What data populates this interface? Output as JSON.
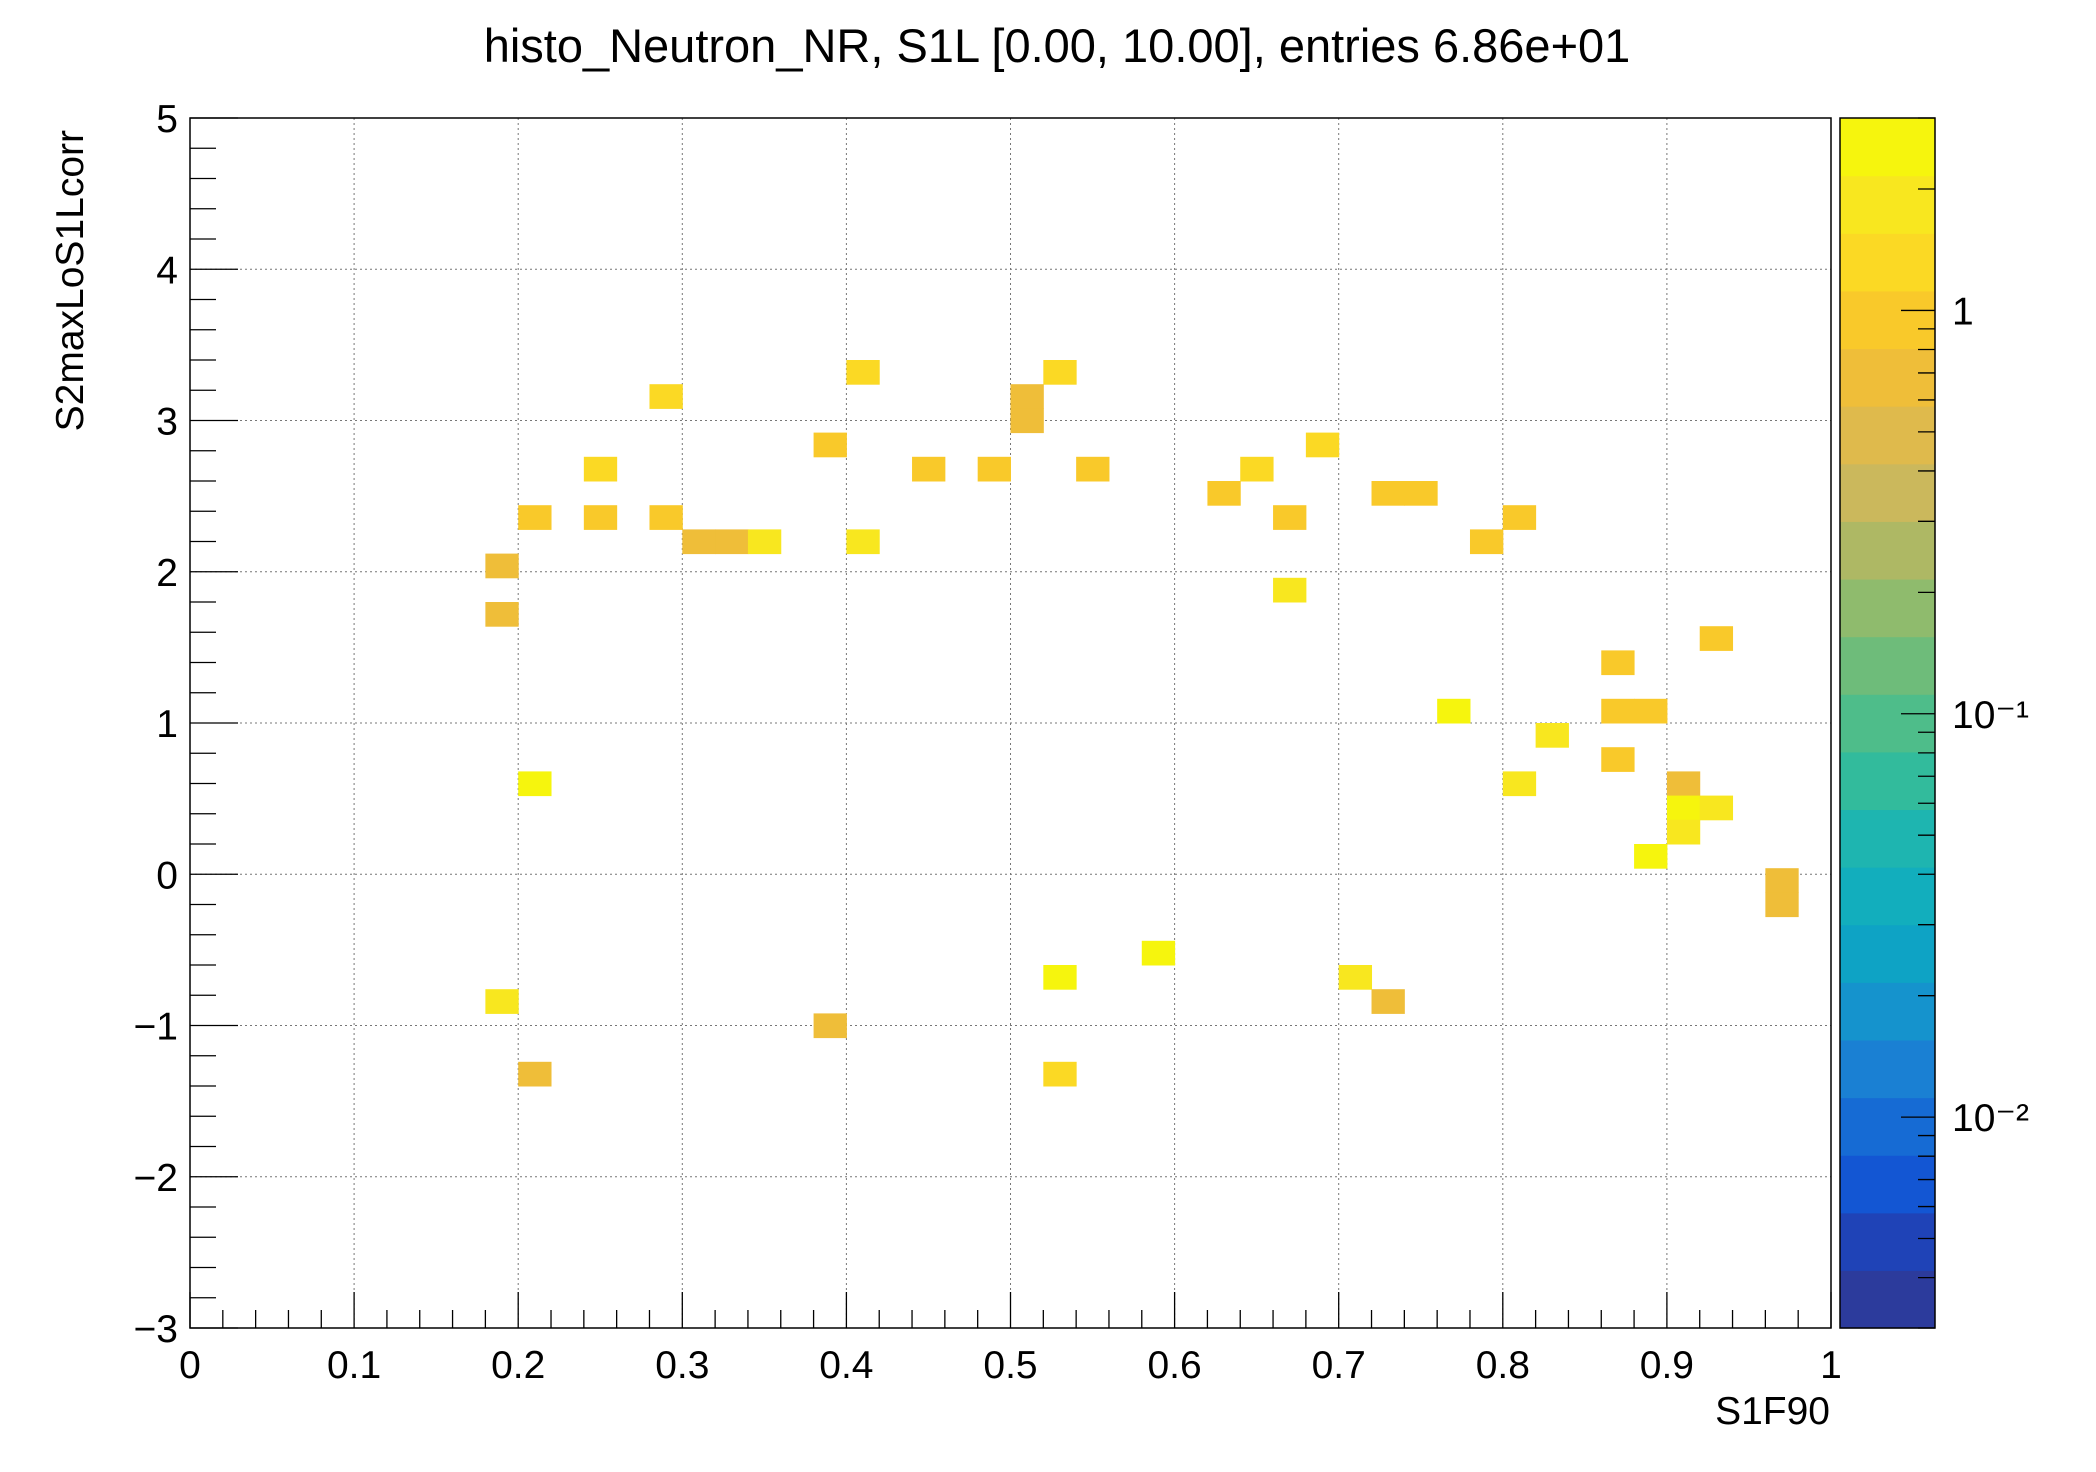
{
  "chart_data": {
    "type": "heatmap",
    "title": "histo_Neutron_NR, S1L [0.00, 10.00], entries 6.86e+01",
    "xlabel": "S1F90",
    "ylabel": "S2maxLoS1Lcorr",
    "xlim": [
      0,
      1
    ],
    "ylim": [
      -3,
      5
    ],
    "x_ticks": [
      "0",
      "0.1",
      "0.2",
      "0.3",
      "0.4",
      "0.5",
      "0.6",
      "0.7",
      "0.8",
      "0.9",
      "1"
    ],
    "y_ticks": [
      "−3",
      "−2",
      "−1",
      "0",
      "1",
      "2",
      "3",
      "4",
      "5"
    ],
    "bin_width_x": 0.02,
    "bin_height_y": 0.16,
    "grid": true,
    "color_scale": {
      "type": "log",
      "min": 0.003,
      "max": 3.0,
      "tick_labels": [
        "10⁻²",
        "10⁻¹",
        "1"
      ],
      "palette": [
        "#2c3b9c",
        "#1f43b7",
        "#1356d3",
        "#166bd4",
        "#1a80d3",
        "#1593cd",
        "#0ea3c5",
        "#12aebd",
        "#1eb5b0",
        "#32bb9c",
        "#4ebd8a",
        "#6ebc7a",
        "#8fbb6d",
        "#aeb864",
        "#cbb85c",
        "#dfba4c",
        "#efbe39",
        "#f9c92a",
        "#fbd924",
        "#f8e71f",
        "#f6f50d"
      ]
    },
    "cells": [
      {
        "x": 0.19,
        "y": 2.04,
        "v": 0.8
      },
      {
        "x": 0.19,
        "y": 1.72,
        "v": 0.8
      },
      {
        "x": 0.19,
        "y": -0.84,
        "v": 1.6
      },
      {
        "x": 0.21,
        "y": 2.36,
        "v": 0.85
      },
      {
        "x": 0.21,
        "y": 0.6,
        "v": 2.4
      },
      {
        "x": 0.21,
        "y": -1.32,
        "v": 0.8
      },
      {
        "x": 0.25,
        "y": 2.68,
        "v": 1.3
      },
      {
        "x": 0.25,
        "y": 2.36,
        "v": 0.85
      },
      {
        "x": 0.29,
        "y": 3.16,
        "v": 1.3
      },
      {
        "x": 0.29,
        "y": 2.36,
        "v": 0.85
      },
      {
        "x": 0.31,
        "y": 2.2,
        "v": 0.8
      },
      {
        "x": 0.33,
        "y": 2.2,
        "v": 0.8
      },
      {
        "x": 0.35,
        "y": 2.2,
        "v": 1.6
      },
      {
        "x": 0.39,
        "y": 2.84,
        "v": 0.9
      },
      {
        "x": 0.39,
        "y": -1.0,
        "v": 0.8
      },
      {
        "x": 0.41,
        "y": 3.32,
        "v": 1.3
      },
      {
        "x": 0.41,
        "y": 2.2,
        "v": 1.6
      },
      {
        "x": 0.45,
        "y": 2.68,
        "v": 0.85
      },
      {
        "x": 0.49,
        "y": 2.68,
        "v": 0.85
      },
      {
        "x": 0.51,
        "y": 3.16,
        "v": 0.8
      },
      {
        "x": 0.51,
        "y": 3.0,
        "v": 0.8
      },
      {
        "x": 0.53,
        "y": 3.32,
        "v": 1.3
      },
      {
        "x": 0.53,
        "y": -0.68,
        "v": 2.4
      },
      {
        "x": 0.53,
        "y": -1.32,
        "v": 1.3
      },
      {
        "x": 0.55,
        "y": 2.68,
        "v": 0.85
      },
      {
        "x": 0.59,
        "y": -0.52,
        "v": 2.4
      },
      {
        "x": 0.63,
        "y": 2.52,
        "v": 0.85
      },
      {
        "x": 0.65,
        "y": 2.68,
        "v": 1.3
      },
      {
        "x": 0.67,
        "y": 2.36,
        "v": 0.85
      },
      {
        "x": 0.67,
        "y": 1.88,
        "v": 1.6
      },
      {
        "x": 0.69,
        "y": 2.84,
        "v": 1.3
      },
      {
        "x": 0.71,
        "y": -0.68,
        "v": 1.6
      },
      {
        "x": 0.73,
        "y": 2.52,
        "v": 0.85
      },
      {
        "x": 0.73,
        "y": -0.84,
        "v": 0.8
      },
      {
        "x": 0.75,
        "y": 2.52,
        "v": 0.85
      },
      {
        "x": 0.77,
        "y": 1.08,
        "v": 2.4
      },
      {
        "x": 0.79,
        "y": 2.2,
        "v": 0.85
      },
      {
        "x": 0.81,
        "y": 2.36,
        "v": 0.85
      },
      {
        "x": 0.81,
        "y": 0.6,
        "v": 1.8
      },
      {
        "x": 0.83,
        "y": 0.92,
        "v": 1.6
      },
      {
        "x": 0.87,
        "y": 1.4,
        "v": 0.85
      },
      {
        "x": 0.87,
        "y": 1.08,
        "v": 0.85
      },
      {
        "x": 0.87,
        "y": 0.76,
        "v": 0.85
      },
      {
        "x": 0.89,
        "y": 1.08,
        "v": 0.85
      },
      {
        "x": 0.89,
        "y": 0.12,
        "v": 2.8
      },
      {
        "x": 0.91,
        "y": 0.6,
        "v": 0.8
      },
      {
        "x": 0.91,
        "y": 0.44,
        "v": 2.8
      },
      {
        "x": 0.91,
        "y": 0.28,
        "v": 1.8
      },
      {
        "x": 0.93,
        "y": 1.56,
        "v": 0.85
      },
      {
        "x": 0.93,
        "y": 0.44,
        "v": 1.6
      },
      {
        "x": 0.97,
        "y": -0.04,
        "v": 0.8
      },
      {
        "x": 0.97,
        "y": -0.2,
        "v": 0.8
      }
    ]
  }
}
